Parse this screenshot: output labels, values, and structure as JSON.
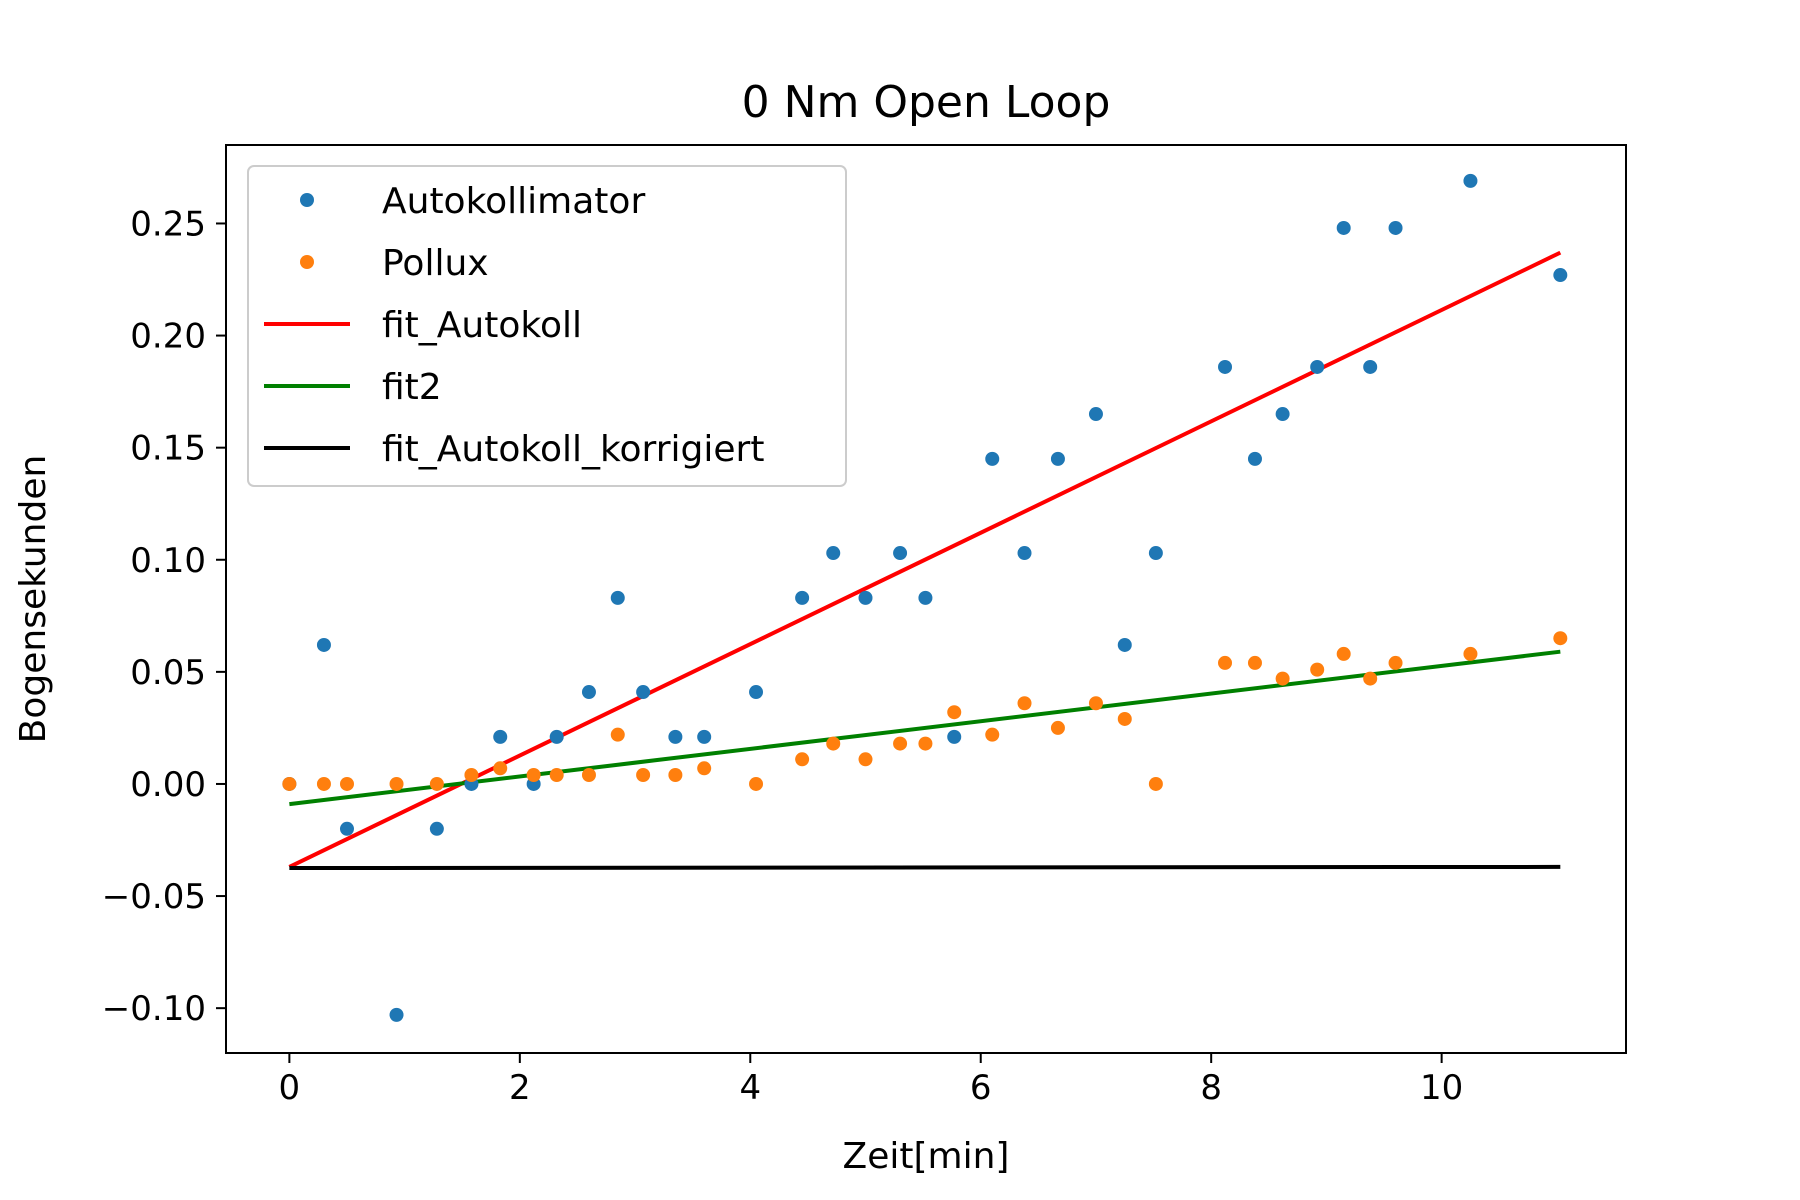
{
  "chart_data": {
    "type": "scatter",
    "title": "0 Nm Open Loop",
    "xlabel": "Zeit[min]",
    "ylabel": "Bogensekunden",
    "xlim": [
      -0.55,
      11.6
    ],
    "ylim": [
      -0.12,
      0.285
    ],
    "x_ticks": [
      0,
      2,
      4,
      6,
      8,
      10
    ],
    "x_tick_labels": [
      "0",
      "2",
      "4",
      "6",
      "8",
      "10"
    ],
    "y_ticks": [
      -0.1,
      -0.05,
      0.0,
      0.05,
      0.1,
      0.15,
      0.2,
      0.25
    ],
    "y_tick_labels": [
      "−0.10",
      "−0.05",
      "0.00",
      "0.05",
      "0.10",
      "0.15",
      "0.20",
      "0.25"
    ],
    "grid": false,
    "legend_position": "top-left",
    "series": [
      {
        "name": "Autokollimator",
        "kind": "points",
        "color": "#1f77b4",
        "x": [
          0.0,
          0.3,
          0.5,
          0.93,
          1.28,
          1.58,
          1.83,
          2.12,
          2.32,
          2.6,
          2.85,
          3.07,
          3.35,
          3.6,
          4.05,
          4.45,
          4.72,
          5.0,
          5.3,
          5.52,
          5.77,
          6.1,
          6.38,
          6.67,
          7.0,
          7.25,
          7.52,
          8.12,
          8.38,
          8.62,
          8.92,
          9.15,
          9.38,
          9.6,
          10.25,
          11.03
        ],
        "y": [
          0.0,
          0.062,
          -0.02,
          -0.103,
          -0.02,
          0.0,
          0.021,
          0.0,
          0.021,
          0.041,
          0.083,
          0.041,
          0.021,
          0.021,
          0.041,
          0.083,
          0.103,
          0.083,
          0.103,
          0.083,
          0.021,
          0.145,
          0.103,
          0.145,
          0.165,
          0.062,
          0.103,
          0.186,
          0.145,
          0.165,
          0.186,
          0.248,
          0.186,
          0.248,
          0.269,
          0.227
        ]
      },
      {
        "name": "Pollux",
        "kind": "points",
        "color": "#ff7f0e",
        "x": [
          0.0,
          0.3,
          0.5,
          0.93,
          1.28,
          1.58,
          1.83,
          2.12,
          2.32,
          2.6,
          2.85,
          3.07,
          3.35,
          3.6,
          4.05,
          4.45,
          4.72,
          5.0,
          5.3,
          5.52,
          5.77,
          6.1,
          6.38,
          6.67,
          7.0,
          7.25,
          7.52,
          8.12,
          8.38,
          8.62,
          8.92,
          9.15,
          9.38,
          9.6,
          10.25,
          11.03
        ],
        "y": [
          0.0,
          0.0,
          0.0,
          0.0,
          0.0,
          0.004,
          0.007,
          0.004,
          0.004,
          0.004,
          0.022,
          0.004,
          0.004,
          0.007,
          0.0,
          0.011,
          0.018,
          0.011,
          0.018,
          0.018,
          0.032,
          0.022,
          0.036,
          0.025,
          0.036,
          0.029,
          0.0,
          0.054,
          0.054,
          0.047,
          0.051,
          0.058,
          0.047,
          0.054,
          0.058,
          0.065
        ]
      },
      {
        "name": "fit_Autokoll",
        "kind": "line",
        "color": "#ff0000",
        "x": [
          0.0,
          11.03
        ],
        "y": [
          -0.037,
          0.237
        ]
      },
      {
        "name": "fit2",
        "kind": "line",
        "color": "#008000",
        "x": [
          0.0,
          11.03
        ],
        "y": [
          -0.009,
          0.059
        ]
      },
      {
        "name": "fit_Autokoll_korrigiert",
        "kind": "line",
        "color": "#000000",
        "x": [
          0.0,
          11.03
        ],
        "y": [
          -0.0375,
          -0.037
        ]
      }
    ]
  }
}
